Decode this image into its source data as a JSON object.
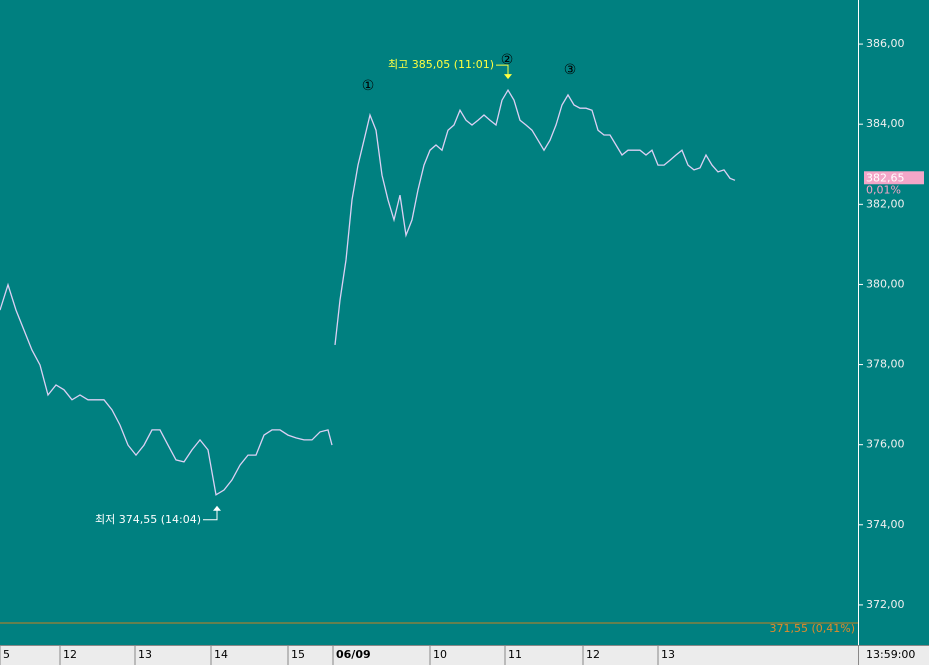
{
  "chart_data": {
    "type": "line",
    "color": "#dcd0f4",
    "x": [
      0,
      8,
      16,
      24,
      32,
      40,
      48,
      56,
      64,
      72,
      80,
      88,
      96,
      104,
      112,
      120,
      128,
      136,
      144,
      152,
      160,
      168,
      176,
      184,
      192,
      200,
      208,
      216,
      224,
      232,
      240,
      248,
      256,
      264,
      272,
      280,
      288,
      296,
      304,
      312,
      320,
      328,
      332,
      333,
      335,
      340,
      346,
      352,
      358,
      364,
      370,
      376,
      382,
      388,
      394,
      400,
      406,
      412,
      418,
      424,
      430,
      436,
      442,
      448,
      454,
      460,
      466,
      472,
      478,
      484,
      490,
      496,
      502,
      508,
      514,
      520,
      526,
      532,
      538,
      544,
      550,
      556,
      562,
      568,
      574,
      580,
      586,
      592,
      598,
      604,
      610,
      616,
      622,
      628,
      634,
      640,
      646,
      652,
      658,
      664,
      670,
      676,
      682,
      688,
      694,
      700,
      706,
      712,
      718,
      724,
      730,
      735
    ],
    "values": [
      379.36,
      379.99,
      379.36,
      378.86,
      378.36,
      377.99,
      377.24,
      377.49,
      377.37,
      377.12,
      377.24,
      377.12,
      377.12,
      377.12,
      376.87,
      376.49,
      375.99,
      375.74,
      375.99,
      376.37,
      376.37,
      375.99,
      375.62,
      375.57,
      375.87,
      376.12,
      375.87,
      374.75,
      374.87,
      375.12,
      375.49,
      375.74,
      375.74,
      376.24,
      376.37,
      376.37,
      376.24,
      376.17,
      376.12,
      376.12,
      376.32,
      376.37,
      375.99,
      null,
      378.49,
      379.61,
      380.61,
      382.11,
      382.98,
      383.6,
      384.23,
      383.85,
      382.73,
      382.11,
      381.61,
      382.23,
      381.23,
      381.61,
      382.36,
      382.98,
      383.35,
      383.48,
      383.35,
      383.85,
      383.98,
      384.35,
      384.1,
      383.98,
      384.1,
      384.23,
      384.1,
      383.98,
      384.6,
      384.85,
      384.6,
      384.1,
      383.98,
      383.85,
      383.6,
      383.35,
      383.6,
      383.98,
      384.48,
      384.73,
      384.48,
      384.4,
      384.4,
      384.35,
      383.85,
      383.73,
      383.73,
      383.48,
      383.23,
      383.35,
      383.35,
      383.35,
      383.23,
      383.35,
      382.98,
      382.98,
      383.1,
      383.23,
      383.35,
      382.98,
      382.86,
      382.91,
      383.23,
      382.98,
      382.81,
      382.86,
      382.65,
      382.6
    ],
    "xlim": [
      0,
      858
    ],
    "ylim": [
      371,
      387.1
    ],
    "xticks": [
      {
        "value": 0,
        "label": "5"
      },
      {
        "value": 60,
        "label": "12"
      },
      {
        "value": 135,
        "label": "13"
      },
      {
        "value": 211,
        "label": "14"
      },
      {
        "value": 288,
        "label": "15"
      },
      {
        "value": 333,
        "label": "06/09"
      },
      {
        "value": 430,
        "label": "10"
      },
      {
        "value": 505,
        "label": "11"
      },
      {
        "value": 583,
        "label": "12"
      },
      {
        "value": 658,
        "label": "13"
      }
    ],
    "yticks": [
      {
        "value": 372,
        "label": "372,00"
      },
      {
        "value": 374,
        "label": "374,00"
      },
      {
        "value": 376,
        "label": "376,00"
      },
      {
        "value": 378,
        "label": "378,00"
      },
      {
        "value": 380,
        "label": "380,00"
      },
      {
        "value": 382,
        "label": "382,00"
      },
      {
        "value": 384,
        "label": "384,00"
      },
      {
        "value": 386,
        "label": "386,00"
      }
    ],
    "time_label": "13:59:00",
    "current": {
      "value": 382.65,
      "label": "382,65",
      "change": "0,01%"
    },
    "baseline": {
      "value": 371.55,
      "label": "371,55 (0,41%)"
    },
    "high": {
      "text": "최고 385,05 (11:01)",
      "x": 508,
      "value": 385.05
    },
    "low": {
      "text": "최저 374,55 (14:04)",
      "x": 217,
      "value": 374.55
    },
    "waves": [
      {
        "label": "①",
        "x": 368,
        "value": 384.4
      },
      {
        "label": "②",
        "x": 507,
        "value": 385.05
      },
      {
        "label": "③",
        "x": 570,
        "value": 384.8
      }
    ]
  }
}
